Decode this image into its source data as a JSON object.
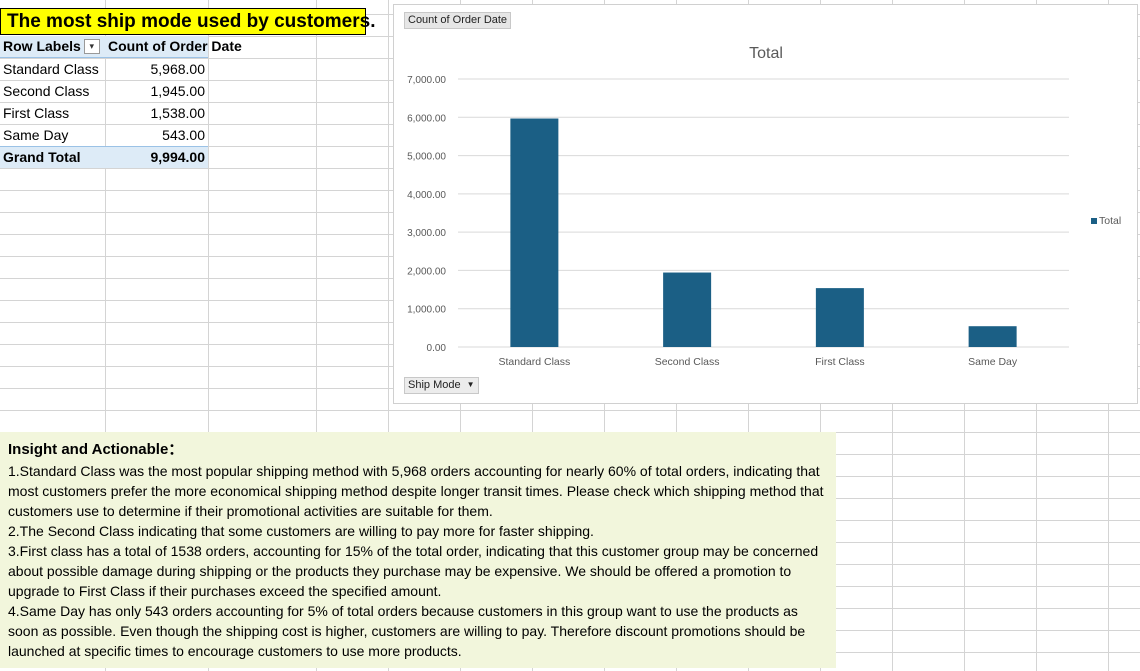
{
  "pivot": {
    "title": "The most ship mode used by customers.",
    "row_labels_header": "Row Labels",
    "count_header": "Count of Order Date",
    "rows": [
      {
        "label": "Standard Class",
        "value": "5,968.00"
      },
      {
        "label": "Second Class",
        "value": "1,945.00"
      },
      {
        "label": "First Class",
        "value": "1,538.00"
      },
      {
        "label": "Same Day",
        "value": "543.00"
      }
    ],
    "grand_total_label": "Grand Total",
    "grand_total_value": "9,994.00"
  },
  "chart": {
    "value_field_button": "Count of Order Date",
    "axis_field_button": "Ship Mode",
    "bar_color": "#1b5f85"
  },
  "chart_data": {
    "type": "bar",
    "title": "Total",
    "categories": [
      "Standard Class",
      "Second Class",
      "First Class",
      "Same Day"
    ],
    "series": [
      {
        "name": "Total",
        "values": [
          5968,
          1945,
          1538,
          543
        ]
      }
    ],
    "ylim": [
      0,
      7000
    ],
    "yticks": [
      "0.00",
      "1,000.00",
      "2,000.00",
      "3,000.00",
      "4,000.00",
      "5,000.00",
      "6,000.00",
      "7,000.00"
    ],
    "legend": "right",
    "grid": true
  },
  "insight": {
    "title": "Insight and Actionable：",
    "points": [
      "1.Standard Class was the most popular shipping method with 5,968 orders  accounting for nearly 60% of total orders, indicating that most customers prefer the more economical shipping method despite longer transit times. Please check which shipping method that customers use to determine if their promotional activities are suitable for them.",
      "2.The Second Class indicating that some customers are willing to pay more for faster shipping.",
      "3.First class has a total of 1538 orders, accounting for 15% of the total order, indicating that this customer group may be concerned about possible damage during shipping or the products they purchase may be expensive. We should be offered a promotion to upgrade to First Class if their purchases exceed the specified amount.",
      "4.Same Day has only 543 orders accounting for  5% of total orders because customers in this group want to use the products as soon as possible. Even though the shipping cost is higher, customers are willing to pay. Therefore discount promotions should be launched at specific times to encourage customers to use more products."
    ]
  }
}
